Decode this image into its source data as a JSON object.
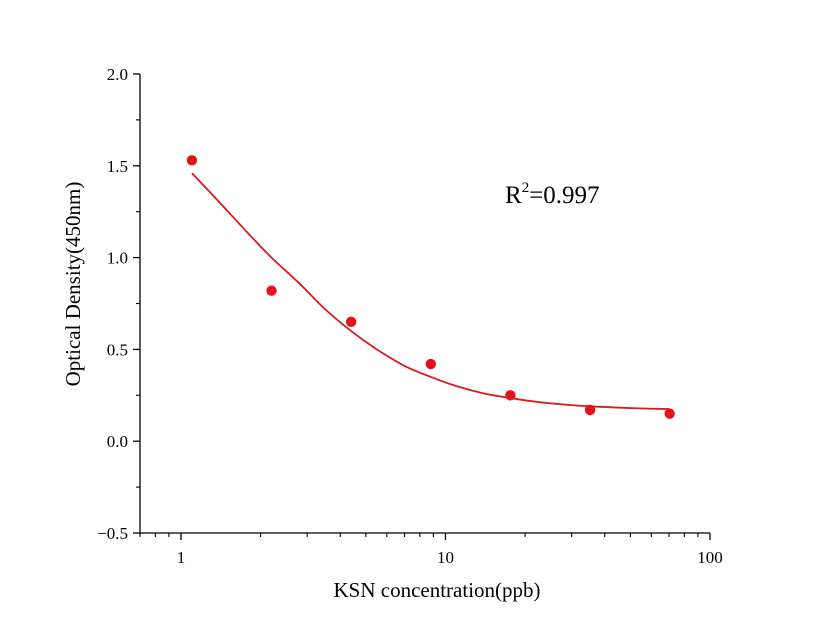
{
  "chart_data": {
    "type": "scatter",
    "xlabel": "KSN concentration(ppb)",
    "ylabel": "Optical Density(450nm)",
    "x_scale": "log",
    "xlim": [
      0.7,
      100
    ],
    "ylim": [
      -0.5,
      2.0
    ],
    "x_ticks": [
      {
        "value": 1,
        "label": "1"
      },
      {
        "value": 10,
        "label": "10"
      },
      {
        "value": 100,
        "label": "100"
      }
    ],
    "y_ticks": [
      {
        "value": 2.0,
        "label": "2.0"
      },
      {
        "value": 1.5,
        "label": "1.5"
      },
      {
        "value": 1.0,
        "label": "1.0"
      },
      {
        "value": 0.5,
        "label": "0.5"
      },
      {
        "value": 0.0,
        "label": "0.0"
      },
      {
        "value": -0.5,
        "label": "−0.5"
      }
    ],
    "grid": false,
    "series": [
      {
        "kind": "points",
        "color": "#e8101a",
        "x": [
          1.1,
          2.2,
          4.4,
          8.8,
          17.6,
          35.2,
          70.4
        ],
        "y": [
          1.53,
          0.82,
          0.65,
          0.42,
          0.25,
          0.17,
          0.15
        ]
      },
      {
        "kind": "fit_curve",
        "color": "#d81c1c",
        "x": [
          1.1,
          1.4,
          1.8,
          2.2,
          2.8,
          3.5,
          4.4,
          5.5,
          7.0,
          8.8,
          11,
          14,
          17.6,
          22,
          28,
          35.2,
          45,
          56,
          70.4
        ],
        "y": [
          1.46,
          1.3,
          1.13,
          1.0,
          0.86,
          0.72,
          0.6,
          0.5,
          0.41,
          0.35,
          0.3,
          0.26,
          0.235,
          0.215,
          0.2,
          0.19,
          0.183,
          0.178,
          0.175
        ]
      }
    ],
    "annotation": {
      "base": "R",
      "sup": "2",
      "rest": "=0.997"
    }
  }
}
